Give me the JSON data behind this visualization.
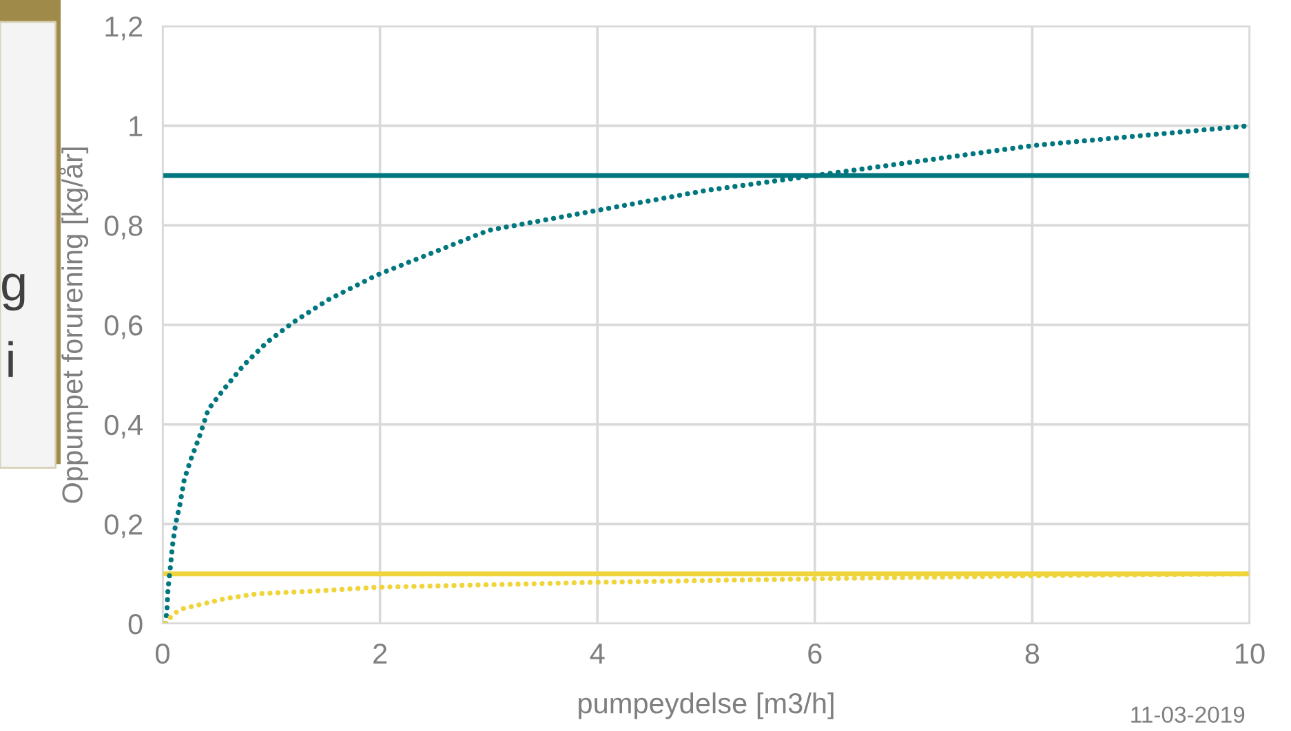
{
  "chart_data": {
    "type": "line",
    "xlabel": "pumpeydelse [m3/h]",
    "ylabel": "Oppumpet forurening [kg/år]",
    "xlim": [
      0,
      10
    ],
    "xticks": [
      0,
      2,
      4,
      6,
      8,
      10
    ],
    "ylim": [
      0,
      1.2
    ],
    "yticks": [
      0,
      {
        "value": 0.2,
        "label": "0,2"
      },
      {
        "value": 0.4,
        "label": "0,4"
      },
      {
        "value": 0.6,
        "label": "0,6"
      },
      {
        "value": 0.8,
        "label": "0,8"
      },
      1,
      {
        "value": 1.2,
        "label": "1,2"
      }
    ],
    "grid": true,
    "legend": false,
    "annotations": [
      "11-03-2019",
      "g",
      "i"
    ],
    "series": [
      {
        "color": "#00767e",
        "line_style": "solid",
        "x": [
          0,
          10
        ],
        "values": [
          0.9,
          0.9
        ]
      },
      {
        "color": "#f0d43c",
        "line_style": "solid",
        "x": [
          0.02,
          10
        ],
        "values": [
          0.1,
          0.1
        ]
      },
      {
        "color": "#00767e",
        "line_style": "dotted",
        "x": [
          0.025,
          0.04,
          0.05,
          0.07,
          0.09,
          0.12,
          0.16,
          0.2,
          0.26,
          0.33,
          0.42,
          0.56,
          0.75,
          0.96,
          1.2,
          1.52,
          1.97,
          3,
          4,
          5,
          6,
          7,
          8,
          9,
          10
        ],
        "values": [
          0.0,
          0.025,
          0.07,
          0.11,
          0.155,
          0.2,
          0.24,
          0.29,
          0.33,
          0.37,
          0.43,
          0.47,
          0.52,
          0.565,
          0.605,
          0.65,
          0.7,
          0.79,
          0.83,
          0.87,
          0.9,
          0.93,
          0.96,
          0.98,
          1.0
        ]
      },
      {
        "color": "#f0d43c",
        "line_style": "dotted",
        "x": [
          0.025,
          0.1,
          0.19,
          0.38,
          0.57,
          0.87,
          1.37,
          1.97,
          4,
          6,
          8,
          10
        ],
        "values": [
          0.0,
          0.02,
          0.03,
          0.04,
          0.05,
          0.06,
          0.065,
          0.073,
          0.083,
          0.09,
          0.096,
          0.1
        ]
      }
    ]
  }
}
